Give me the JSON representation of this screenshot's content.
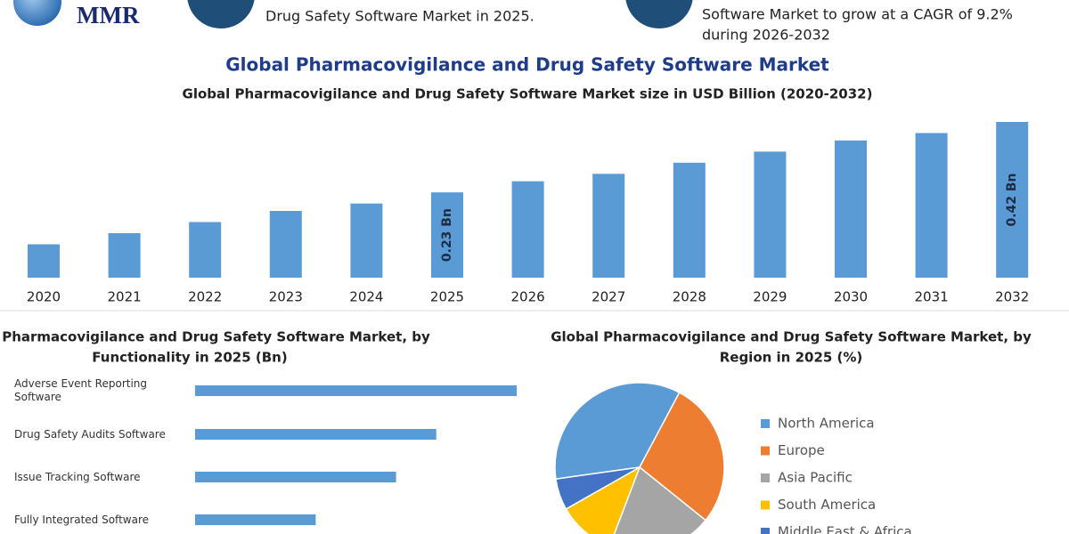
{
  "header": {
    "logo": "MMR",
    "note_1": "Drug Safety Software Market in 2025.",
    "note_2": [
      "Software Market to grow at a CAGR of 9.2%",
      "during 2026-2032"
    ]
  },
  "chart_data": [
    {
      "type": "bar",
      "title": "Global Pharmacovigilance and Drug Safety Software Market",
      "subtitle": "Global Pharmacovigilance and Drug Safety Software Market size in USD Billion (2020-2032)",
      "categories": [
        "2020",
        "2021",
        "2022",
        "2023",
        "2024",
        "2025",
        "2026",
        "2027",
        "2028",
        "2029",
        "2030",
        "2031",
        "2032"
      ],
      "values": [
        0.09,
        0.12,
        0.15,
        0.18,
        0.2,
        0.23,
        0.26,
        0.28,
        0.31,
        0.34,
        0.37,
        0.39,
        0.42
      ],
      "value_labels": [
        null,
        null,
        null,
        null,
        null,
        "0.23 Bn",
        null,
        null,
        null,
        null,
        null,
        null,
        "0.42 Bn"
      ],
      "color": "#5b9bd5"
    },
    {
      "type": "hbar",
      "title": [
        "Global Pharmacovigilance and Drug Safety Software Market, by",
        "Functionality in 2025 (Bn)"
      ],
      "categories": [
        "Adverse Event Reporting Software",
        "Drug Safety Audits Software",
        "Issue Tracking Software",
        "Fully Integrated Software"
      ],
      "values": [
        0.08,
        0.06,
        0.05,
        0.03
      ],
      "color": "#5b9bd5"
    },
    {
      "type": "pie",
      "title": [
        "Global Pharmacovigilance and Drug Safety Software Market, by",
        "Region in 2025 (%)"
      ],
      "categories": [
        "North America",
        "Europe",
        "Asia Pacific",
        "South America",
        "Middle East & Africa"
      ],
      "values": [
        35,
        28,
        20,
        11,
        6
      ],
      "colors": [
        "#5b9bd5",
        "#ed7d31",
        "#a5a5a5",
        "#ffc000",
        "#4472c4"
      ]
    }
  ]
}
